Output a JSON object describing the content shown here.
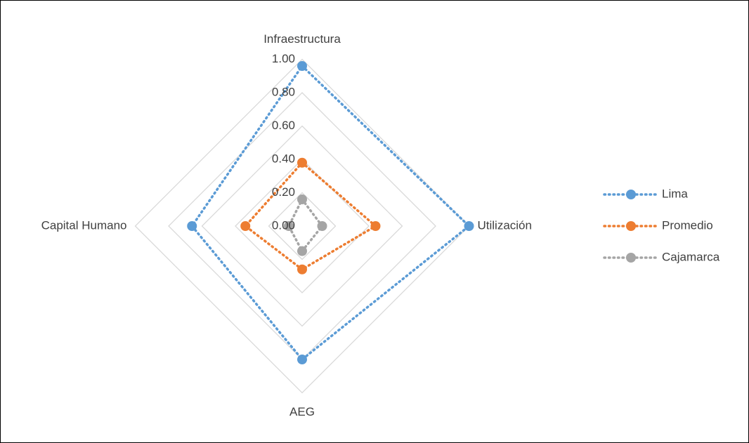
{
  "chart_data": {
    "type": "radar",
    "categories": [
      "Infraestructura",
      "Utilización",
      "AEG",
      "Capital Humano"
    ],
    "series": [
      {
        "name": "Lima",
        "color": "#5b9bd5",
        "values": [
          0.96,
          1.0,
          0.8,
          0.66
        ]
      },
      {
        "name": "Promedio",
        "color": "#ed7d31",
        "values": [
          0.38,
          0.44,
          0.26,
          0.34
        ]
      },
      {
        "name": "Cajamarca",
        "color": "#a5a5a5",
        "values": [
          0.16,
          0.12,
          0.15,
          0.08
        ]
      }
    ],
    "ylim": [
      0,
      1
    ],
    "yticks": [
      {
        "value": 0,
        "label": "0.00"
      },
      {
        "value": 0.2,
        "label": "0.20"
      },
      {
        "value": 0.4,
        "label": "0.40"
      },
      {
        "value": 0.6,
        "label": "0.60"
      },
      {
        "value": 0.8,
        "label": "0.80"
      },
      {
        "value": 1,
        "label": "1.00"
      }
    ],
    "grid": true,
    "legend": "right"
  }
}
